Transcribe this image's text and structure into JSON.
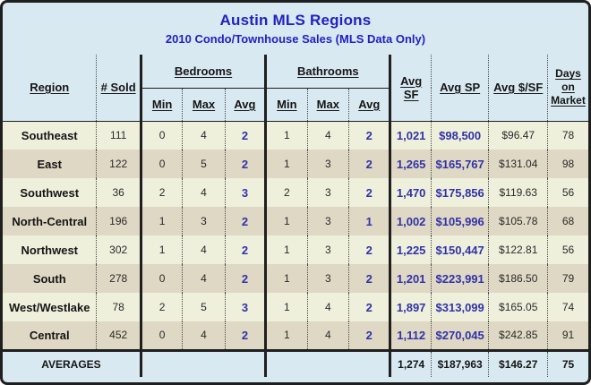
{
  "header": {
    "title": "Austin MLS Regions",
    "subtitle": "2010 Condo/Townhouse Sales (MLS Data Only)"
  },
  "table": {
    "columns": {
      "region": "Region",
      "sold": "# Sold",
      "bedrooms_group": "Bedrooms",
      "bathrooms_group": "Bathrooms",
      "min": "Min",
      "max": "Max",
      "avg": "Avg",
      "avg_sf": "Avg SF",
      "avg_sp": "Avg SP",
      "avg_psf": "Avg $/SF",
      "days": "Days on Market"
    },
    "rows": [
      {
        "region": "Southeast",
        "sold": "111",
        "bed_min": "0",
        "bed_max": "4",
        "bed_avg": "2",
        "bath_min": "1",
        "bath_max": "4",
        "bath_avg": "2",
        "avg_sf": "1,021",
        "avg_sp": "$98,500",
        "avg_psf": "$96.47",
        "days": "78"
      },
      {
        "region": "East",
        "sold": "122",
        "bed_min": "0",
        "bed_max": "5",
        "bed_avg": "2",
        "bath_min": "1",
        "bath_max": "3",
        "bath_avg": "2",
        "avg_sf": "1,265",
        "avg_sp": "$165,767",
        "avg_psf": "$131.04",
        "days": "98"
      },
      {
        "region": "Southwest",
        "sold": "36",
        "bed_min": "2",
        "bed_max": "4",
        "bed_avg": "3",
        "bath_min": "2",
        "bath_max": "3",
        "bath_avg": "2",
        "avg_sf": "1,470",
        "avg_sp": "$175,856",
        "avg_psf": "$119.63",
        "days": "56"
      },
      {
        "region": "North-Central",
        "sold": "196",
        "bed_min": "1",
        "bed_max": "3",
        "bed_avg": "2",
        "bath_min": "1",
        "bath_max": "3",
        "bath_avg": "1",
        "avg_sf": "1,002",
        "avg_sp": "$105,996",
        "avg_psf": "$105.78",
        "days": "68"
      },
      {
        "region": "Northwest",
        "sold": "302",
        "bed_min": "1",
        "bed_max": "4",
        "bed_avg": "2",
        "bath_min": "1",
        "bath_max": "3",
        "bath_avg": "2",
        "avg_sf": "1,225",
        "avg_sp": "$150,447",
        "avg_psf": "$122.81",
        "days": "56"
      },
      {
        "region": "South",
        "sold": "278",
        "bed_min": "0",
        "bed_max": "4",
        "bed_avg": "2",
        "bath_min": "1",
        "bath_max": "3",
        "bath_avg": "2",
        "avg_sf": "1,201",
        "avg_sp": "$223,991",
        "avg_psf": "$186.50",
        "days": "79"
      },
      {
        "region": "West/Westlake",
        "sold": "78",
        "bed_min": "2",
        "bed_max": "5",
        "bed_avg": "3",
        "bath_min": "1",
        "bath_max": "4",
        "bath_avg": "2",
        "avg_sf": "1,897",
        "avg_sp": "$313,099",
        "avg_psf": "$165.05",
        "days": "74"
      },
      {
        "region": "Central",
        "sold": "452",
        "bed_min": "0",
        "bed_max": "4",
        "bed_avg": "2",
        "bath_min": "1",
        "bath_max": "4",
        "bath_avg": "2",
        "avg_sf": "1,112",
        "avg_sp": "$270,045",
        "avg_psf": "$242.85",
        "days": "91"
      }
    ],
    "averages": {
      "label": "AVERAGES",
      "avg_sf": "1,274",
      "avg_sp": "$187,963",
      "avg_psf": "$146.27",
      "days": "75"
    }
  },
  "colors": {
    "background_blue": "#d9e9f1",
    "row_odd": "#eef0dc",
    "row_even": "#ded8c4",
    "title_blue": "#2121c4",
    "data_blue": "#3232a8",
    "border": "#1f1f1f"
  }
}
